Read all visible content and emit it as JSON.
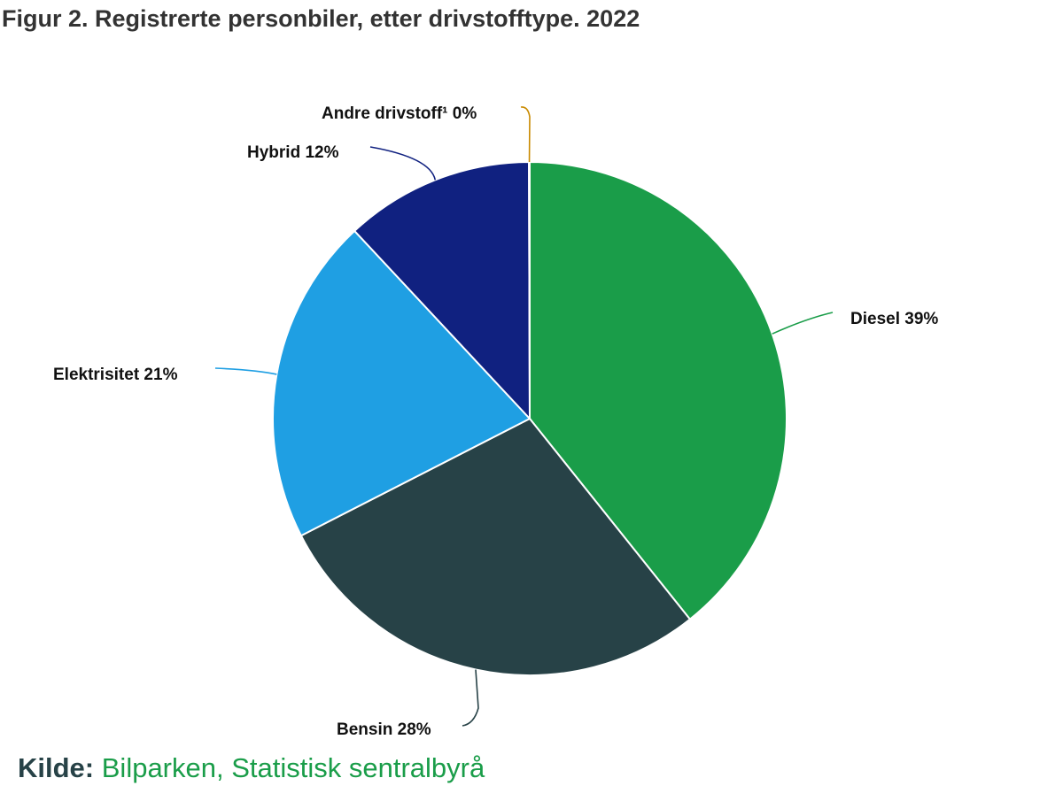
{
  "title": "Figur 2. Registrerte personbiler, etter drivstofftype. 2022",
  "source": {
    "label": "Kilde:",
    "text": "Bilparken, Statistisk sentralbyrå"
  },
  "chart_data": {
    "type": "pie",
    "title": "Figur 2. Registrerte personbiler, etter drivstofftype. 2022",
    "slices": [
      {
        "name": "Diesel",
        "label": "Diesel 39%",
        "value": 39.3,
        "color": "#1a9d49"
      },
      {
        "name": "Bensin",
        "label": "Bensin 28%",
        "value": 28.2,
        "color": "#274247"
      },
      {
        "name": "Elektrisitet",
        "label": "Elektrisitet 21%",
        "value": 20.6,
        "color": "#1f9fe3"
      },
      {
        "name": "Hybrid",
        "label": "Hybrid 12%",
        "value": 11.9,
        "color": "#102180"
      },
      {
        "name": "Andre drivstoff¹",
        "label": "Andre drivstoff¹ 0%",
        "value": 0.05,
        "color": "#c98a00"
      }
    ]
  }
}
